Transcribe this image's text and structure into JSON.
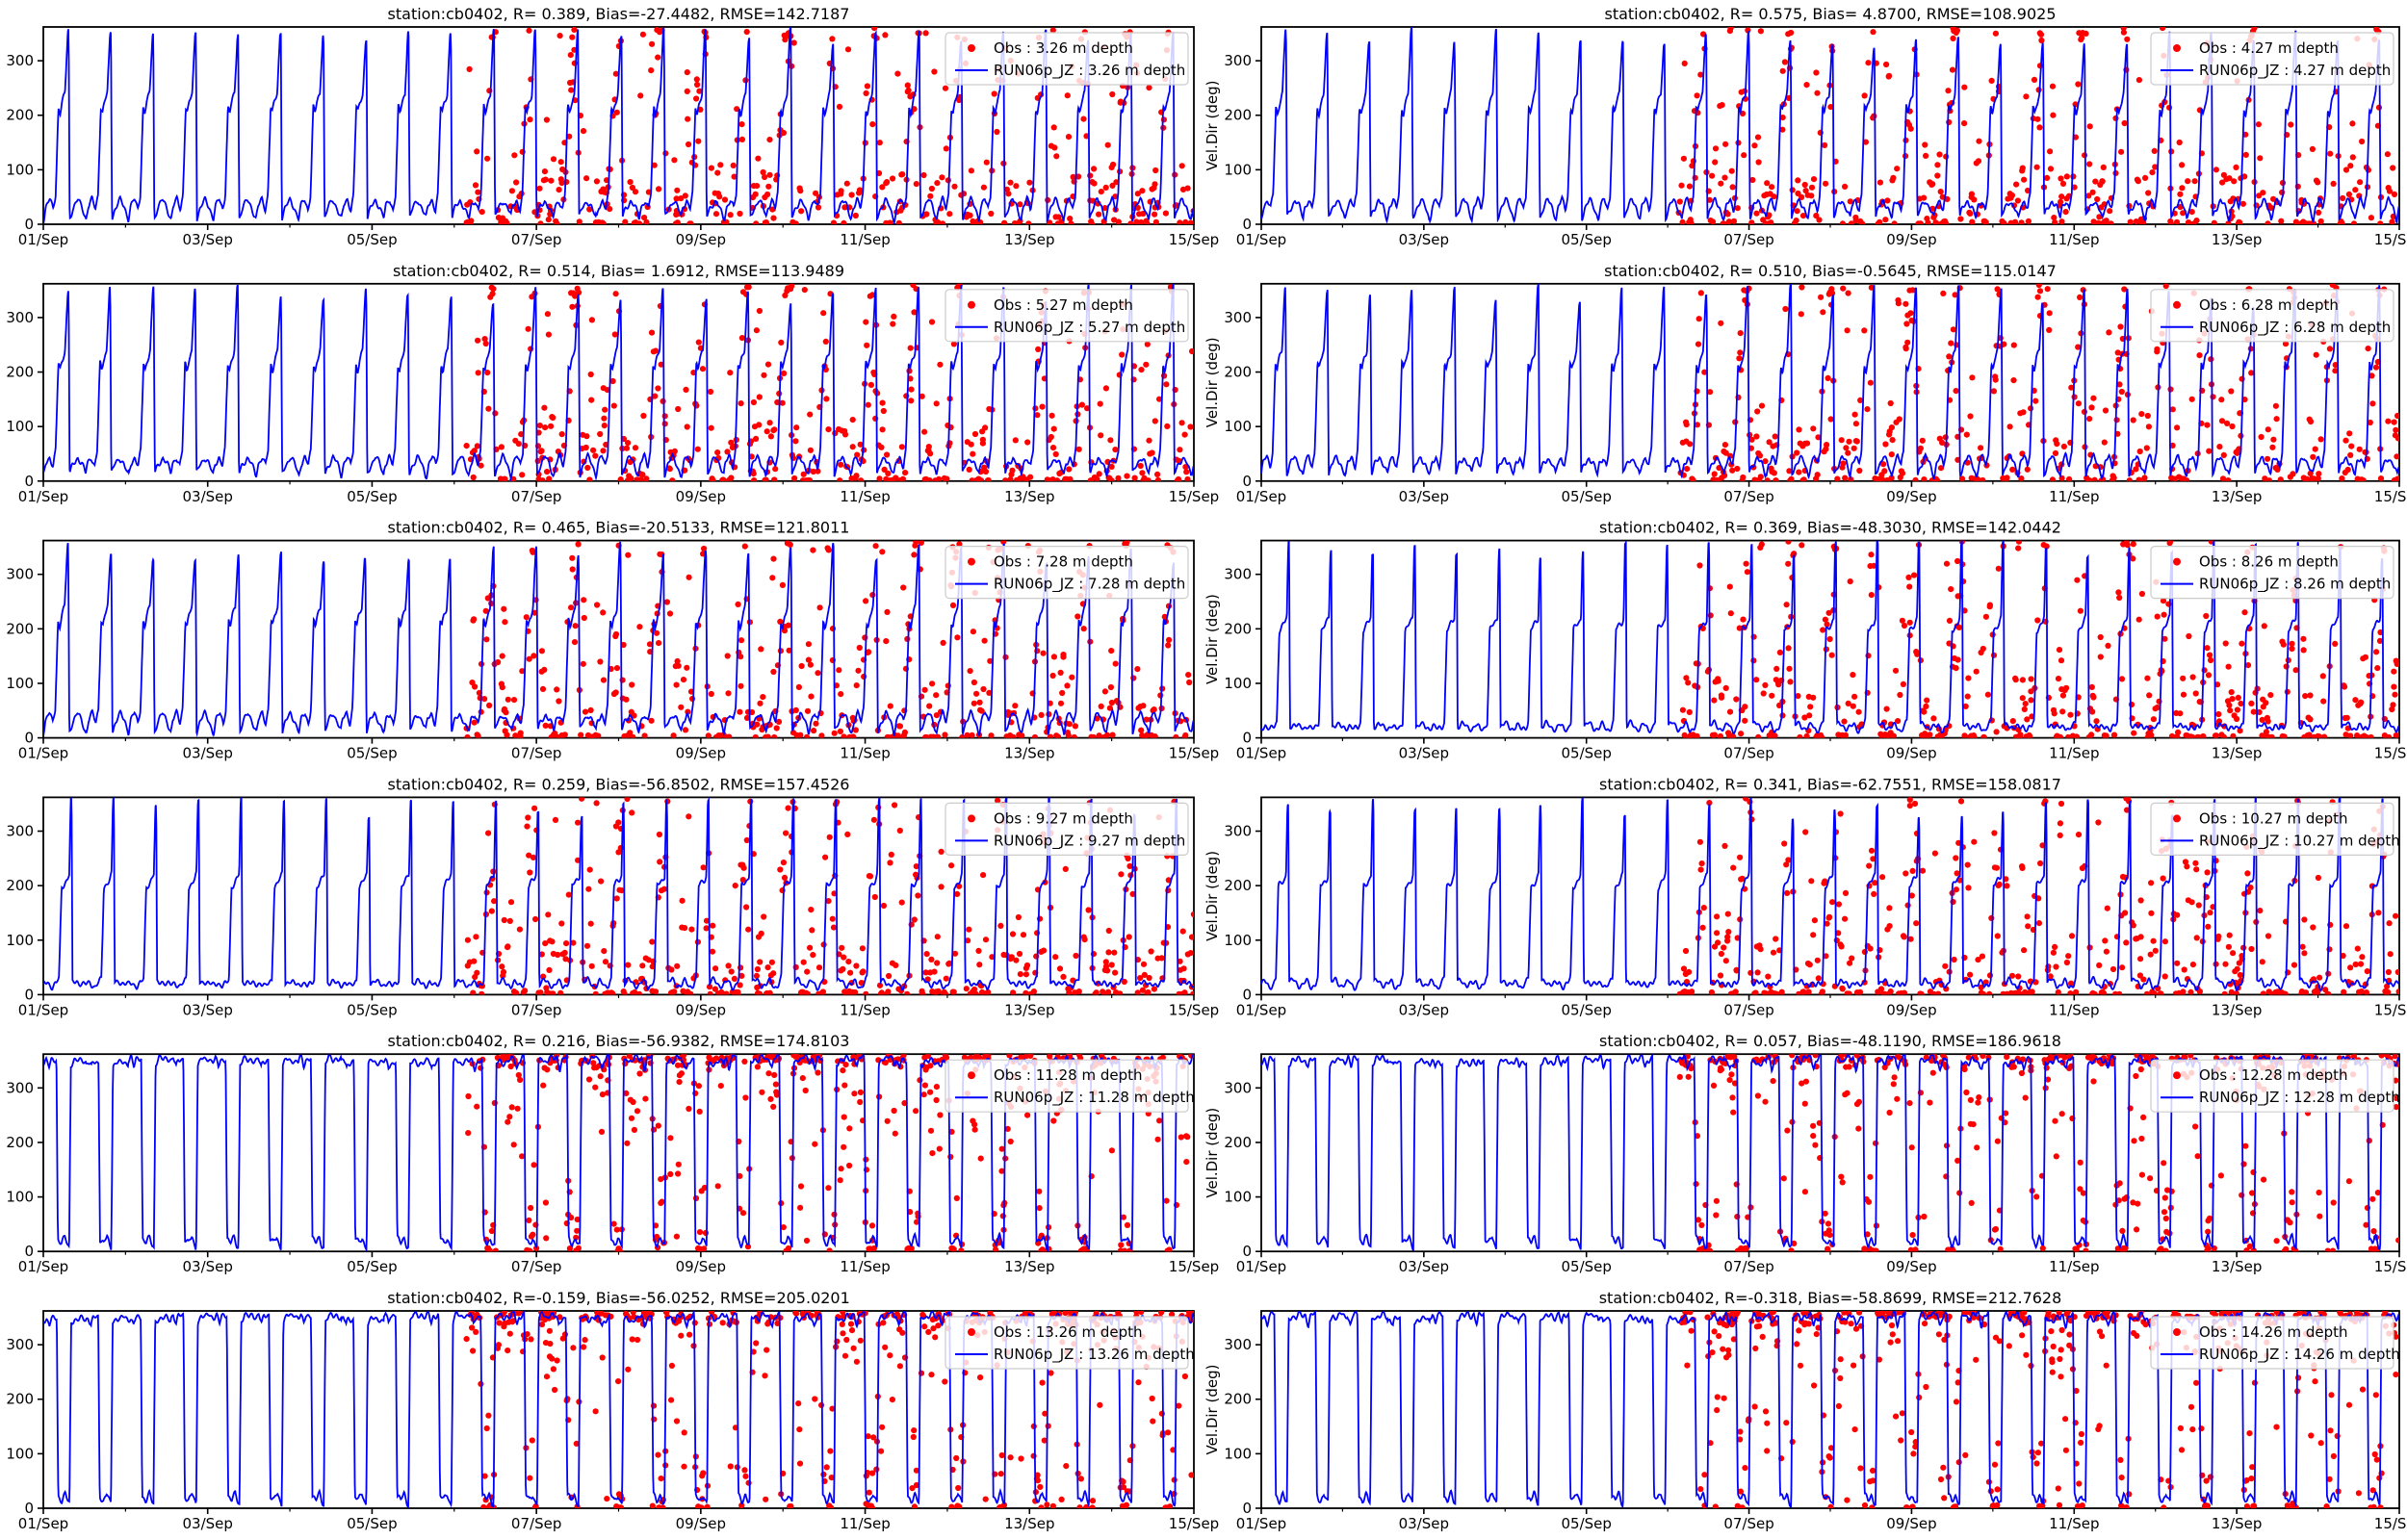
{
  "figure": {
    "station": "cb0402",
    "x_tick_labels": [
      "01/Sep",
      "03/Sep",
      "05/Sep",
      "07/Sep",
      "09/Sep",
      "11/Sep",
      "13/Sep",
      "15/Sep"
    ],
    "y_ticks": [
      0,
      100,
      200,
      300
    ],
    "ylim": [
      0,
      362
    ],
    "x_range_days": 14,
    "right_column_ylabel": "Vel.Dir (deg)",
    "tidal_period_days": 0.5175,
    "obs_start_day": 5.15,
    "colors": {
      "obs": "#ff0000",
      "model": "#0000ff",
      "legend_border": "#cccccc",
      "axis": "#000000"
    }
  },
  "waveforms": {
    "shallow": [
      [
        0,
        10
      ],
      [
        0.05,
        32
      ],
      [
        0.14,
        45
      ],
      [
        0.22,
        28
      ],
      [
        0.28,
        55
      ],
      [
        0.345,
        215
      ],
      [
        0.385,
        204
      ],
      [
        0.43,
        222
      ],
      [
        0.5,
        240
      ],
      [
        0.565,
        348
      ],
      [
        0.585,
        355
      ],
      [
        0.61,
        12
      ],
      [
        0.68,
        28
      ],
      [
        0.8,
        44
      ],
      [
        0.9,
        32
      ],
      [
        1,
        10
      ]
    ],
    "mid": [
      [
        0,
        18
      ],
      [
        0.09,
        24
      ],
      [
        0.2,
        14
      ],
      [
        0.3,
        20
      ],
      [
        0.36,
        30
      ],
      [
        0.42,
        198
      ],
      [
        0.5,
        206
      ],
      [
        0.56,
        212
      ],
      [
        0.6,
        220
      ],
      [
        0.635,
        352
      ],
      [
        0.655,
        356
      ],
      [
        0.675,
        22
      ],
      [
        0.78,
        26
      ],
      [
        0.9,
        18
      ],
      [
        1,
        18
      ]
    ],
    "deep": [
      [
        0,
        352
      ],
      [
        0.06,
        358
      ],
      [
        0.13,
        336
      ],
      [
        0.18,
        352
      ],
      [
        0.26,
        356
      ],
      [
        0.3,
        358
      ],
      [
        0.335,
        24
      ],
      [
        0.42,
        14
      ],
      [
        0.5,
        26
      ],
      [
        0.56,
        12
      ],
      [
        0.6,
        8
      ],
      [
        0.64,
        345
      ],
      [
        0.72,
        356
      ],
      [
        0.82,
        350
      ],
      [
        0.9,
        357
      ],
      [
        1,
        352
      ]
    ]
  },
  "chart_data": [
    {
      "type": "line+scatter",
      "row": 0,
      "col": 0,
      "title": "station:cb0402, R= 0.389, Bias=-27.4482, RMSE=142.7187",
      "stats": {
        "R": 0.389,
        "bias": -27.4482,
        "rmse": 142.7187
      },
      "depth_m": 3.26,
      "ylabel": null,
      "legend": [
        "Obs : 3.26 m depth",
        "RUN06p_JZ : 3.26 m depth"
      ],
      "waveform": "shallow",
      "sigma": 45,
      "seed": 11
    },
    {
      "type": "line+scatter",
      "row": 0,
      "col": 1,
      "title": "station:cb0402, R= 0.575, Bias= 4.8700, RMSE=108.9025",
      "stats": {
        "R": 0.575,
        "bias": 4.87,
        "rmse": 108.9025
      },
      "depth_m": 4.27,
      "ylabel": "Vel.Dir (deg)",
      "legend": [
        "Obs : 4.27 m depth",
        "RUN06p_JZ : 4.27 m depth"
      ],
      "waveform": "shallow",
      "sigma": 45,
      "seed": 22
    },
    {
      "type": "line+scatter",
      "row": 1,
      "col": 0,
      "title": "station:cb0402, R= 0.514, Bias= 1.6912, RMSE=113.9489",
      "stats": {
        "R": 0.514,
        "bias": 1.6912,
        "rmse": 113.9489
      },
      "depth_m": 5.27,
      "ylabel": null,
      "legend": [
        "Obs : 5.27 m depth",
        "RUN06p_JZ : 5.27 m depth"
      ],
      "waveform": "shallow",
      "sigma": 48,
      "seed": 33
    },
    {
      "type": "line+scatter",
      "row": 1,
      "col": 1,
      "title": "station:cb0402, R= 0.510, Bias=-0.5645, RMSE=115.0147",
      "stats": {
        "R": 0.51,
        "bias": -0.5645,
        "rmse": 115.0147
      },
      "depth_m": 6.28,
      "ylabel": "Vel.Dir (deg)",
      "legend": [
        "Obs : 6.28 m depth",
        "RUN06p_JZ : 6.28 m depth"
      ],
      "waveform": "shallow",
      "sigma": 48,
      "seed": 44
    },
    {
      "type": "line+scatter",
      "row": 2,
      "col": 0,
      "title": "station:cb0402, R= 0.465, Bias=-20.5133, RMSE=121.8011",
      "stats": {
        "R": 0.465,
        "bias": -20.5133,
        "rmse": 121.8011
      },
      "depth_m": 7.28,
      "ylabel": null,
      "legend": [
        "Obs : 7.28 m depth",
        "RUN06p_JZ : 7.28 m depth"
      ],
      "waveform": "shallow",
      "sigma": 55,
      "seed": 55
    },
    {
      "type": "line+scatter",
      "row": 2,
      "col": 1,
      "title": "station:cb0402, R= 0.369, Bias=-48.3030, RMSE=142.0442",
      "stats": {
        "R": 0.369,
        "bias": -48.303,
        "rmse": 142.0442
      },
      "depth_m": 8.26,
      "ylabel": "Vel.Dir (deg)",
      "legend": [
        "Obs : 8.26 m depth",
        "RUN06p_JZ : 8.26 m depth"
      ],
      "waveform": "mid",
      "sigma": 60,
      "seed": 66
    },
    {
      "type": "line+scatter",
      "row": 3,
      "col": 0,
      "title": "station:cb0402, R= 0.259, Bias=-56.8502, RMSE=157.4526",
      "stats": {
        "R": 0.259,
        "bias": -56.8502,
        "rmse": 157.4526
      },
      "depth_m": 9.27,
      "ylabel": null,
      "legend": [
        "Obs : 9.27 m depth",
        "RUN06p_JZ : 9.27 m depth"
      ],
      "waveform": "mid",
      "sigma": 62,
      "seed": 77
    },
    {
      "type": "line+scatter",
      "row": 3,
      "col": 1,
      "title": "station:cb0402, R= 0.341, Bias=-62.7551, RMSE=158.0817",
      "stats": {
        "R": 0.341,
        "bias": -62.7551,
        "rmse": 158.0817
      },
      "depth_m": 10.27,
      "ylabel": "Vel.Dir (deg)",
      "legend": [
        "Obs : 10.27 m depth",
        "RUN06p_JZ : 10.27 m depth"
      ],
      "waveform": "mid",
      "sigma": 65,
      "seed": 88
    },
    {
      "type": "line+scatter",
      "row": 4,
      "col": 0,
      "title": "station:cb0402, R= 0.216, Bias=-56.9382, RMSE=174.8103",
      "stats": {
        "R": 0.216,
        "bias": -56.9382,
        "rmse": 174.8103
      },
      "depth_m": 11.28,
      "ylabel": null,
      "legend": [
        "Obs : 11.28 m depth",
        "RUN06p_JZ : 11.28 m depth"
      ],
      "waveform": "deep",
      "sigma": 75,
      "seed": 99
    },
    {
      "type": "line+scatter",
      "row": 4,
      "col": 1,
      "title": "station:cb0402, R= 0.057, Bias=-48.1190, RMSE=186.9618",
      "stats": {
        "R": 0.057,
        "bias": -48.119,
        "rmse": 186.9618
      },
      "depth_m": 12.28,
      "ylabel": "Vel.Dir (deg)",
      "legend": [
        "Obs : 12.28 m depth",
        "RUN06p_JZ : 12.28 m depth"
      ],
      "waveform": "deep",
      "sigma": 78,
      "seed": 111
    },
    {
      "type": "line+scatter",
      "row": 5,
      "col": 0,
      "title": "station:cb0402, R=-0.159, Bias=-56.0252, RMSE=205.0201",
      "stats": {
        "R": -0.159,
        "bias": -56.0252,
        "rmse": 205.0201
      },
      "depth_m": 13.26,
      "ylabel": null,
      "legend": [
        "Obs : 13.26 m depth",
        "RUN06p_JZ : 13.26 m depth"
      ],
      "waveform": "deep",
      "sigma": 80,
      "seed": 123
    },
    {
      "type": "line+scatter",
      "row": 5,
      "col": 1,
      "title": "station:cb0402, R=-0.318, Bias=-58.8699, RMSE=212.7628",
      "stats": {
        "R": -0.318,
        "bias": -58.8699,
        "rmse": 212.7628
      },
      "depth_m": 14.26,
      "ylabel": "Vel.Dir (deg)",
      "legend": [
        "Obs : 14.26 m depth",
        "RUN06p_JZ : 14.26 m depth"
      ],
      "waveform": "deep",
      "sigma": 82,
      "seed": 135
    }
  ]
}
